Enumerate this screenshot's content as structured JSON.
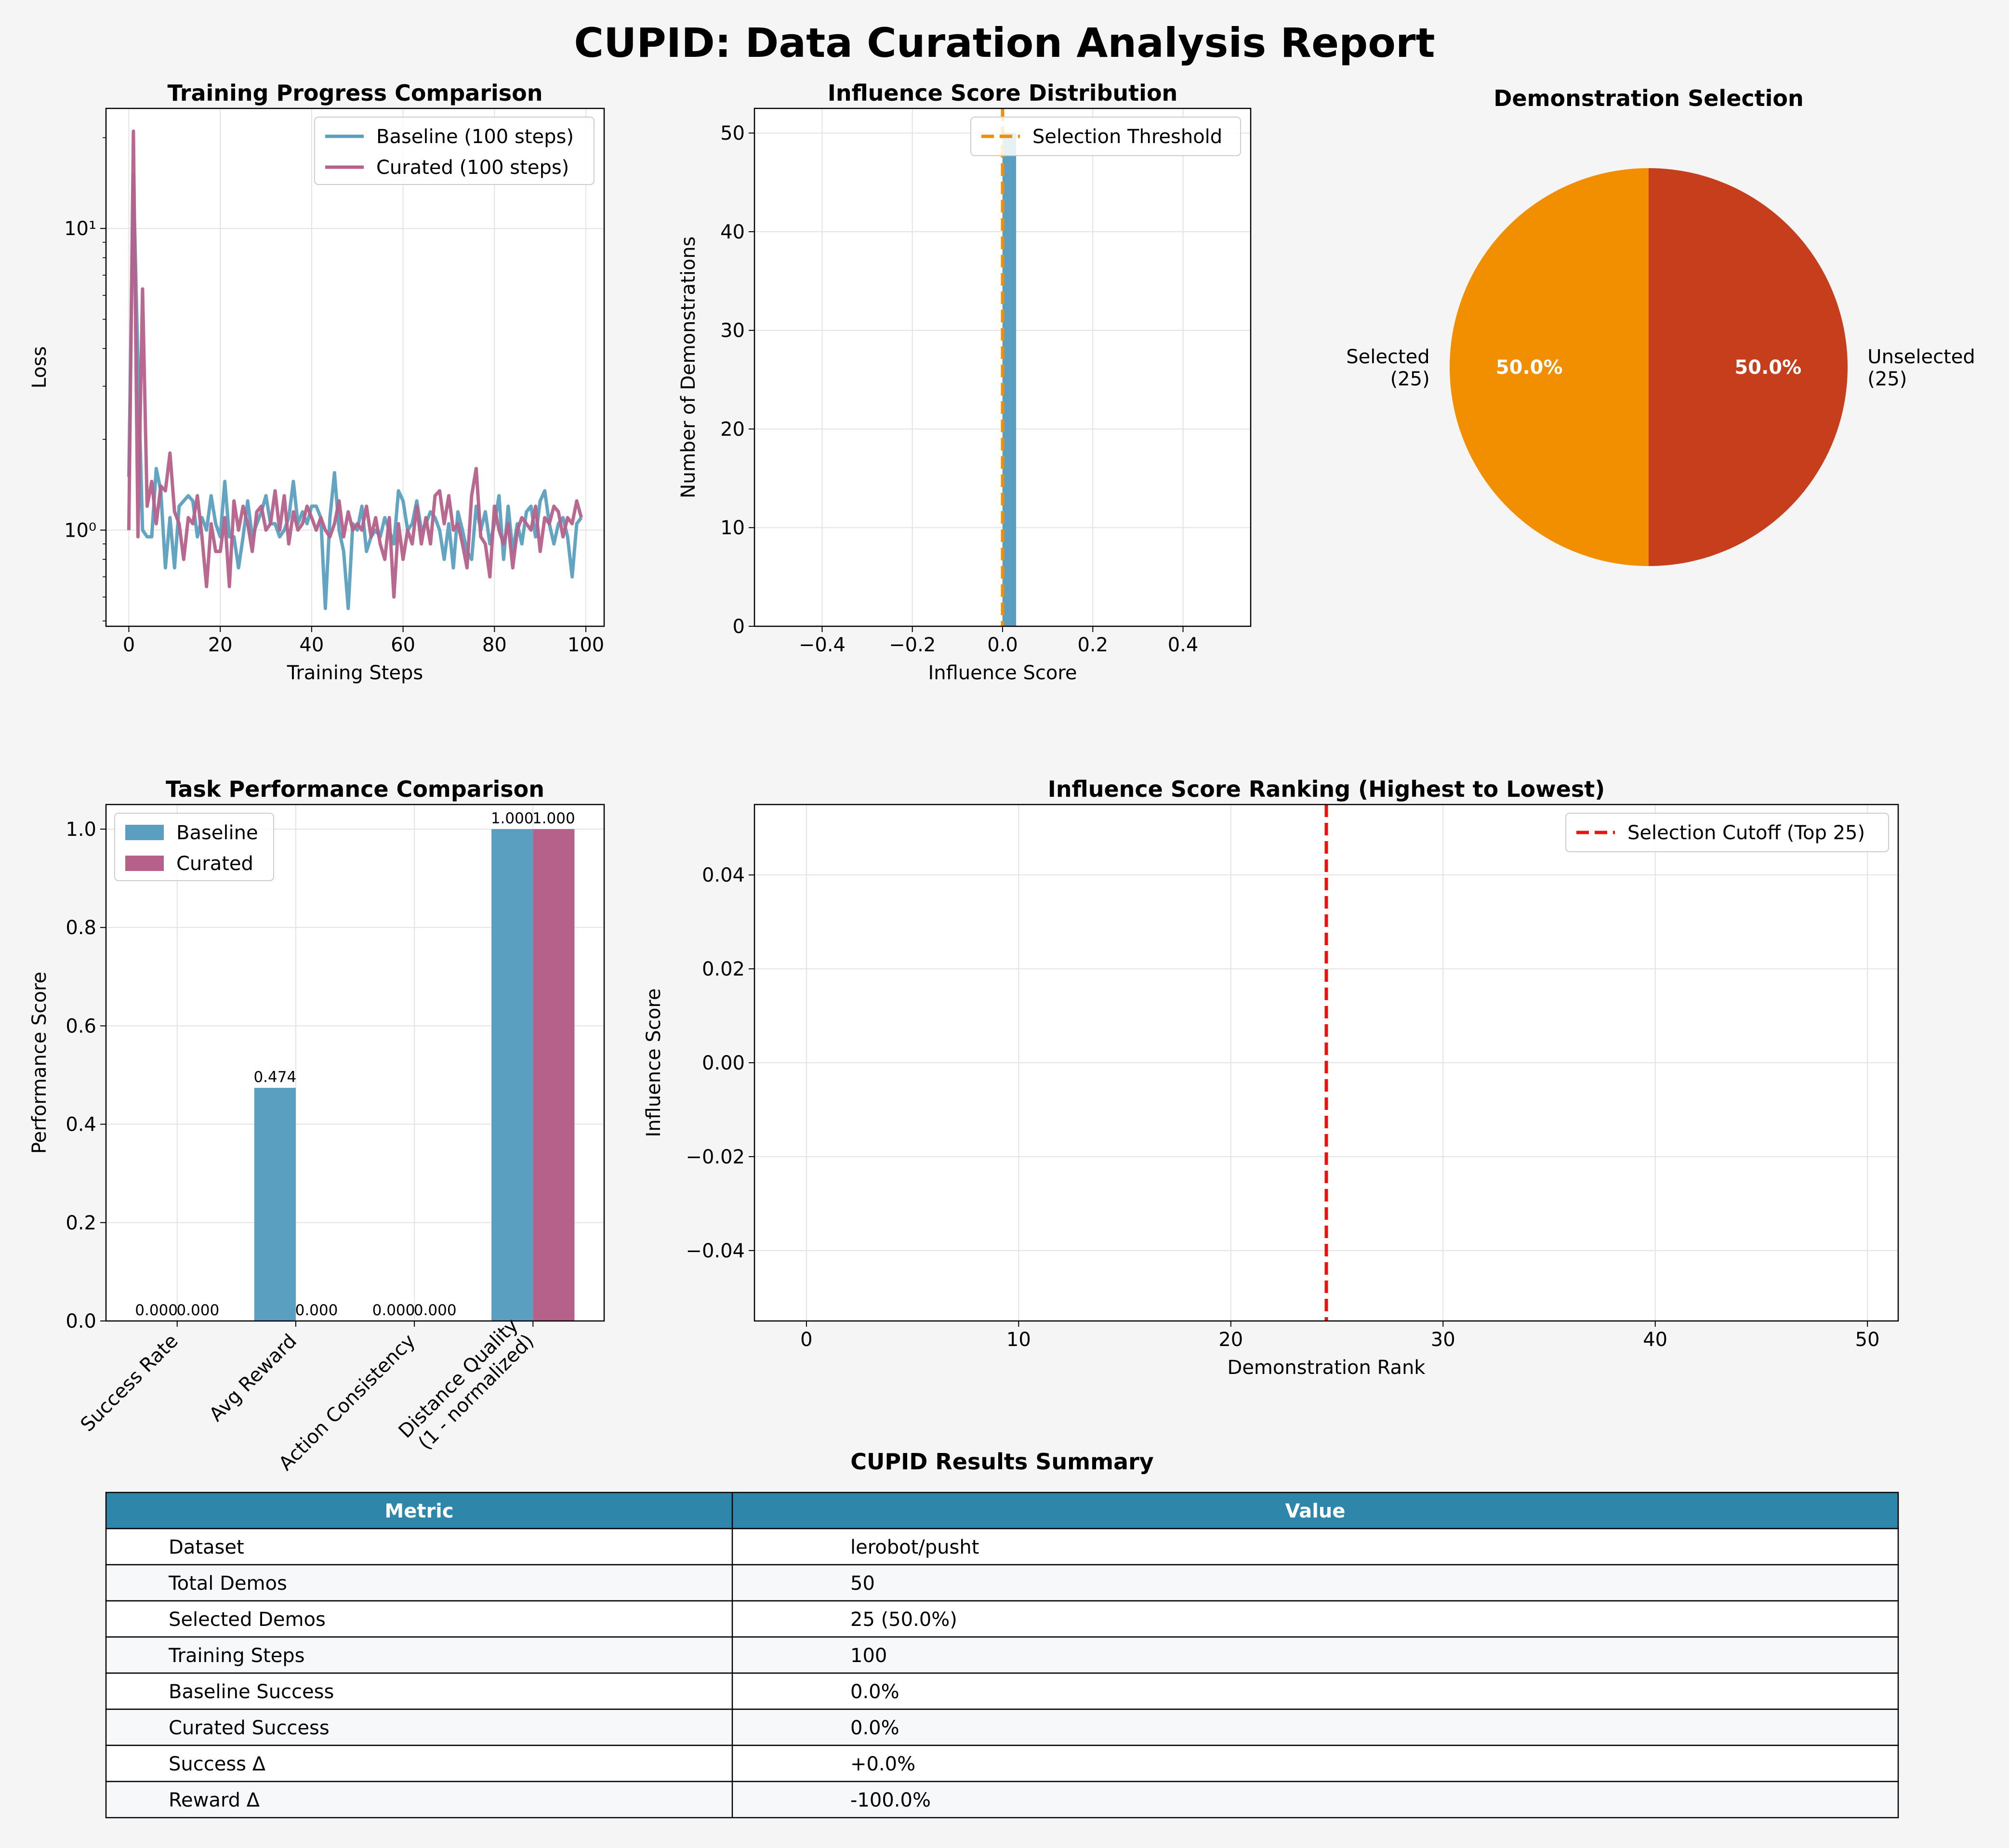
{
  "page": {
    "title": "CUPID: Data Curation Analysis Report",
    "background": "#f5f5f5"
  },
  "colors": {
    "baseline": "#5a9fbf",
    "curated": "#b5618a",
    "selected": "#f18f01",
    "unselected": "#c73e1d",
    "threshold": "#f18f01",
    "cutoff": "#ee1111",
    "table_header": "#2e86ab",
    "table_row_alt": "#f6f8fa"
  },
  "chart_data": [
    {
      "id": "training",
      "type": "line",
      "title": "Training Progress Comparison",
      "xlabel": "Training Steps",
      "ylabel": "Loss",
      "yscale": "log",
      "xlim": [
        -5,
        104
      ],
      "ylim": [
        0.48,
        25
      ],
      "xticks": [
        0,
        20,
        40,
        60,
        80,
        100
      ],
      "xtick_labels": [
        "0",
        "20",
        "40",
        "60",
        "80",
        "100"
      ],
      "yticks": [
        1,
        10
      ],
      "ytick_labels": [
        "10⁰",
        "10¹"
      ],
      "grid": true,
      "legend": "top-right",
      "series": [
        {
          "name": "Baseline (100 steps)",
          "color": "#5a9fbf",
          "x": [
            0,
            1,
            2,
            3,
            4,
            5,
            6,
            7,
            8,
            9,
            10,
            11,
            12,
            13,
            14,
            15,
            16,
            17,
            18,
            19,
            20,
            21,
            22,
            23,
            24,
            25,
            26,
            27,
            28,
            29,
            30,
            31,
            32,
            33,
            34,
            35,
            36,
            37,
            38,
            39,
            40,
            41,
            42,
            43,
            44,
            45,
            46,
            47,
            48,
            49,
            50,
            51,
            52,
            53,
            54,
            55,
            56,
            57,
            58,
            59,
            60,
            61,
            62,
            63,
            64,
            65,
            66,
            67,
            68,
            69,
            70,
            71,
            72,
            73,
            74,
            75,
            76,
            77,
            78,
            79,
            80,
            81,
            82,
            83,
            84,
            85,
            86,
            87,
            88,
            89,
            90,
            91,
            92,
            93,
            94,
            95,
            96,
            97,
            98,
            99
          ],
          "values": [
            1.5,
            15.0,
            3.5,
            1.0,
            0.95,
            0.95,
            1.6,
            1.35,
            0.75,
            1.1,
            0.75,
            1.2,
            1.25,
            1.3,
            1.25,
            0.95,
            1.1,
            1.0,
            1.3,
            1.05,
            0.95,
            1.45,
            0.95,
            0.95,
            0.75,
            0.95,
            1.25,
            0.95,
            1.05,
            1.15,
            1.3,
            1.05,
            1.05,
            0.95,
            1.0,
            1.1,
            1.45,
            1.05,
            1.15,
            1.05,
            1.2,
            1.2,
            1.1,
            0.55,
            1.1,
            1.55,
            1.0,
            0.85,
            0.55,
            1.05,
            1.0,
            1.2,
            0.85,
            0.95,
            1.0,
            0.95,
            1.1,
            1.0,
            0.9,
            1.35,
            1.25,
            1.0,
            1.05,
            1.25,
            1.0,
            1.05,
            1.15,
            1.1,
            1.0,
            0.8,
            1.05,
            0.75,
            1.15,
            1.0,
            0.85,
            0.8,
            1.2,
            1.0,
            1.15,
            0.9,
            1.05,
            1.3,
            0.8,
            1.2,
            0.85,
            1.05,
            0.9,
            1.15,
            1.2,
            0.95,
            1.25,
            1.35,
            1.05,
            0.9,
            1.05,
            1.1,
            0.95,
            0.7,
            1.05,
            1.1
          ]
        },
        {
          "name": "Curated (100 steps)",
          "color": "#b5618a",
          "x": [
            0,
            1,
            2,
            3,
            4,
            5,
            6,
            7,
            8,
            9,
            10,
            11,
            12,
            13,
            14,
            15,
            16,
            17,
            18,
            19,
            20,
            21,
            22,
            23,
            24,
            25,
            26,
            27,
            28,
            29,
            30,
            31,
            32,
            33,
            34,
            35,
            36,
            37,
            38,
            39,
            40,
            41,
            42,
            43,
            44,
            45,
            46,
            47,
            48,
            49,
            50,
            51,
            52,
            53,
            54,
            55,
            56,
            57,
            58,
            59,
            60,
            61,
            62,
            63,
            64,
            65,
            66,
            67,
            68,
            69,
            70,
            71,
            72,
            73,
            74,
            75,
            76,
            77,
            78,
            79,
            80,
            81,
            82,
            83,
            84,
            85,
            86,
            87,
            88,
            89,
            90,
            91,
            92,
            93,
            94,
            95,
            96,
            97,
            98,
            99
          ],
          "values": [
            1.0,
            21.0,
            0.95,
            6.3,
            1.2,
            1.45,
            1.05,
            1.4,
            1.35,
            1.8,
            1.15,
            1.05,
            0.8,
            1.1,
            1.05,
            1.3,
            0.95,
            0.65,
            1.05,
            0.85,
            0.85,
            1.1,
            0.65,
            1.25,
            1.0,
            1.2,
            1.05,
            0.85,
            1.15,
            1.2,
            1.0,
            1.05,
            1.35,
            1.0,
            1.3,
            0.9,
            1.15,
            1.0,
            1.05,
            1.2,
            1.1,
            1.0,
            1.1,
            1.0,
            0.95,
            1.05,
            1.25,
            0.95,
            1.15,
            1.0,
            1.05,
            1.0,
            1.2,
            0.95,
            1.1,
            0.9,
            0.8,
            1.1,
            0.6,
            1.05,
            0.8,
            1.0,
            0.9,
            1.2,
            0.9,
            1.1,
            0.9,
            1.3,
            1.35,
            1.05,
            1.3,
            1.0,
            1.05,
            0.9,
            0.75,
            1.3,
            1.6,
            0.95,
            0.9,
            0.7,
            1.2,
            1.0,
            0.9,
            1.05,
            0.75,
            1.0,
            1.1,
            1.05,
            1.0,
            1.2,
            0.85,
            1.1,
            1.05,
            1.2,
            1.15,
            0.95,
            1.1,
            1.05,
            1.25,
            1.1
          ]
        }
      ]
    },
    {
      "id": "histogram",
      "type": "bar",
      "title": "Influence Score Distribution",
      "xlabel": "Influence Score",
      "ylabel": "Number of Demonstrations",
      "xlim": [
        -0.55,
        0.55
      ],
      "ylim": [
        0,
        52.5
      ],
      "xticks": [
        -0.4,
        -0.2,
        0.0,
        0.2,
        0.4
      ],
      "xtick_labels": [
        "−0.4",
        "−0.2",
        "0.0",
        "0.2",
        "0.4"
      ],
      "yticks": [
        0,
        10,
        20,
        30,
        40,
        50
      ],
      "ytick_labels": [
        "0",
        "10",
        "20",
        "30",
        "40",
        "50"
      ],
      "bins": [
        {
          "x0": 0.0,
          "x1": 0.03,
          "count": 50
        }
      ],
      "threshold": {
        "name": "Selection Threshold",
        "value": 0.0
      },
      "grid": true,
      "legend": "top-right"
    },
    {
      "id": "pie",
      "type": "pie",
      "title": "Demonstration Selection",
      "slices": [
        {
          "label": "Selected",
          "count_label": "(25)",
          "value": 25,
          "pct": "50.0%",
          "color": "#f18f01"
        },
        {
          "label": "Unselected",
          "count_label": "(25)",
          "value": 25,
          "pct": "50.0%",
          "color": "#c73e1d"
        }
      ]
    },
    {
      "id": "performance",
      "type": "bar",
      "title": "Task Performance Comparison",
      "ylabel": "Performance Score",
      "ylim": [
        0,
        1.05
      ],
      "yticks": [
        0.0,
        0.2,
        0.4,
        0.6,
        0.8,
        1.0
      ],
      "ytick_labels": [
        "0.0",
        "0.2",
        "0.4",
        "0.6",
        "0.8",
        "1.0"
      ],
      "categories": [
        [
          "Success Rate"
        ],
        [
          "Avg Reward"
        ],
        [
          "Action Consistency"
        ],
        [
          "Distance Quality",
          "(1 - normalized)"
        ]
      ],
      "series": [
        {
          "name": "Baseline",
          "color": "#5a9fbf",
          "values": [
            0.0,
            0.474,
            0.0,
            1.0
          ],
          "labels": [
            "0.000",
            "0.474",
            "0.000",
            "1.000"
          ]
        },
        {
          "name": "Curated",
          "color": "#b5618a",
          "values": [
            0.0,
            0.0,
            0.0,
            1.0
          ],
          "labels": [
            "0.000",
            "0.000",
            "0.000",
            "1.000"
          ]
        }
      ],
      "grid": true,
      "legend": "top-left"
    },
    {
      "id": "ranking",
      "type": "line",
      "title": "Influence Score Ranking (Highest to Lowest)",
      "xlabel": "Demonstration Rank",
      "ylabel": "Influence Score",
      "xlim": [
        -2.45,
        51.45
      ],
      "ylim": [
        -0.055,
        0.055
      ],
      "xticks": [
        0,
        10,
        20,
        30,
        40,
        50
      ],
      "xtick_labels": [
        "0",
        "10",
        "20",
        "30",
        "40",
        "50"
      ],
      "yticks": [
        -0.04,
        -0.02,
        0.0,
        0.02,
        0.04
      ],
      "ytick_labels": [
        "−0.04",
        "−0.02",
        "0.00",
        "0.02",
        "0.04"
      ],
      "cutoff": {
        "name": "Selection Cutoff (Top 25)",
        "value": 24.5
      },
      "grid": true,
      "legend": "top-right"
    }
  ],
  "table": {
    "title": "CUPID Results Summary",
    "headers": [
      "Metric",
      "Value"
    ],
    "rows": [
      [
        "Dataset",
        "lerobot/pusht"
      ],
      [
        "Total Demos",
        "50"
      ],
      [
        "Selected Demos",
        "25 (50.0%)"
      ],
      [
        "Training Steps",
        "100"
      ],
      [
        "Baseline Success",
        "0.0%"
      ],
      [
        "Curated Success",
        "0.0%"
      ],
      [
        "Success Δ",
        "+0.0%"
      ],
      [
        "Reward Δ",
        "-100.0%"
      ]
    ]
  }
}
